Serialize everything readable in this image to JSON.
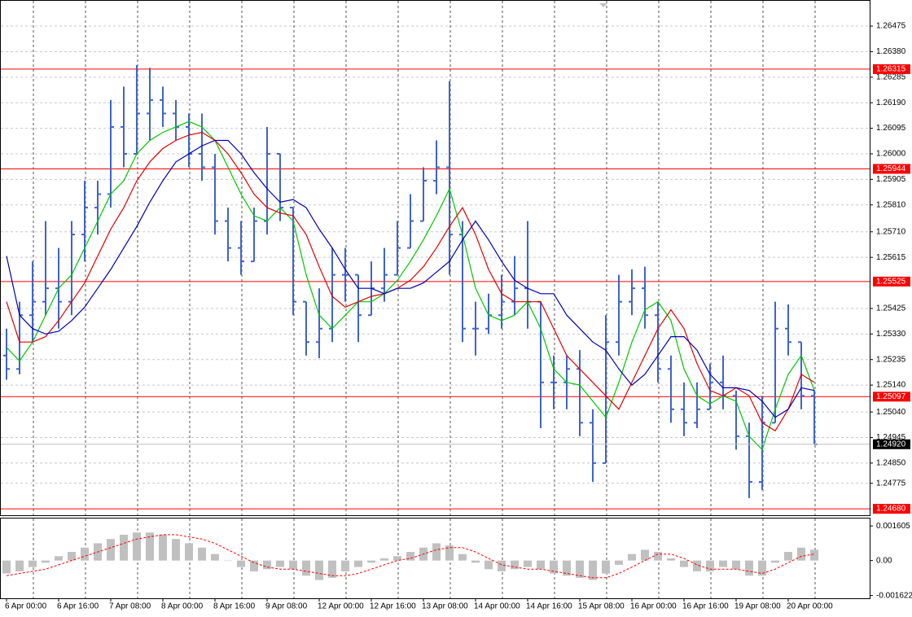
{
  "chart_data": [
    {
      "type": "ohlc",
      "categories": [
        "6 Apr 00:00",
        null,
        null,
        null,
        "6 Apr 16:00",
        null,
        null,
        null,
        "7 Apr 08:00",
        null,
        null,
        null,
        "8 Apr 00:00",
        null,
        null,
        null,
        "8 Apr 16:00",
        null,
        null,
        null,
        "9 Apr 08:00",
        null,
        null,
        null,
        "12 Apr 00:00",
        null,
        null,
        null,
        "12 Apr 16:00",
        null,
        null,
        null,
        "13 Apr 08:00",
        null,
        null,
        null,
        "14 Apr 00:00",
        null,
        null,
        null,
        "14 Apr 16:00",
        null,
        null,
        null,
        "15 Apr 08:00",
        null,
        null,
        null,
        "16 Apr 00:00",
        null,
        null,
        null,
        "16 Apr 16:00",
        null,
        null,
        null,
        "19 Apr 08:00",
        null,
        null,
        null,
        "20 Apr 00:00",
        null,
        null
      ],
      "open": [
        1.2525,
        1.252,
        1.254,
        1.2545,
        1.255,
        1.2545,
        1.257,
        1.258,
        1.2585,
        1.261,
        1.26,
        1.2615,
        1.262,
        1.2615,
        1.261,
        1.26,
        1.2595,
        1.2575,
        1.2565,
        1.256,
        1.2575,
        1.26,
        1.258,
        1.2545,
        1.253,
        1.2535,
        1.2555,
        1.2555,
        1.254,
        1.255,
        1.2555,
        1.2565,
        1.2575,
        1.259,
        1.2595,
        1.257,
        1.2535,
        1.2535,
        1.254,
        1.2545,
        1.255,
        1.2545,
        1.2515,
        1.2515,
        1.252,
        1.25,
        1.2485,
        1.253,
        1.2545,
        1.255,
        1.254,
        1.252,
        1.2505,
        1.25,
        1.2505,
        1.2515,
        1.251,
        1.2495,
        1.2478,
        1.25,
        1.2535,
        1.253,
        1.251
      ],
      "high": [
        1.2535,
        1.2545,
        1.256,
        1.2575,
        1.2565,
        1.2575,
        1.259,
        1.259,
        1.262,
        1.2625,
        1.2633,
        1.2632,
        1.2625,
        1.262,
        1.2615,
        1.2615,
        1.26,
        1.258,
        1.2575,
        1.258,
        1.261,
        1.26,
        1.258,
        1.2545,
        1.255,
        1.2565,
        1.2565,
        1.2555,
        1.256,
        1.2565,
        1.2575,
        1.2585,
        1.2595,
        1.2605,
        1.2627,
        1.2575,
        1.2545,
        1.2548,
        1.2555,
        1.2562,
        1.2575,
        1.2545,
        1.2525,
        1.2525,
        1.2527,
        1.2505,
        1.254,
        1.2555,
        1.2557,
        1.2558,
        1.2545,
        1.2525,
        1.2515,
        1.2515,
        1.2522,
        1.2525,
        1.2512,
        1.25,
        1.251,
        1.2545,
        1.2544,
        1.253,
        1.2512
      ],
      "low": [
        1.2516,
        1.2518,
        1.253,
        1.254,
        1.2535,
        1.254,
        1.256,
        1.257,
        1.258,
        1.2595,
        1.26,
        1.2605,
        1.261,
        1.2605,
        1.2595,
        1.259,
        1.257,
        1.256,
        1.2555,
        1.256,
        1.257,
        1.2575,
        1.254,
        1.2525,
        1.2524,
        1.253,
        1.2545,
        1.253,
        1.254,
        1.2545,
        1.2555,
        1.2565,
        1.2575,
        1.2585,
        1.2555,
        1.253,
        1.2525,
        1.2533,
        1.2535,
        1.254,
        1.2535,
        1.2498,
        1.2505,
        1.2505,
        1.2495,
        1.2478,
        1.2485,
        1.2525,
        1.254,
        1.2535,
        1.2515,
        1.25,
        1.2495,
        1.2498,
        1.2505,
        1.2505,
        1.249,
        1.2472,
        1.2475,
        1.25,
        1.2525,
        1.2505,
        1.2492
      ],
      "close": [
        1.252,
        1.254,
        1.2545,
        1.255,
        1.2545,
        1.257,
        1.258,
        1.2585,
        1.261,
        1.26,
        1.2615,
        1.262,
        1.2615,
        1.261,
        1.26,
        1.2595,
        1.2575,
        1.2565,
        1.256,
        1.2575,
        1.26,
        1.258,
        1.2545,
        1.253,
        1.2535,
        1.2555,
        1.2555,
        1.254,
        1.255,
        1.2555,
        1.2565,
        1.2575,
        1.259,
        1.2595,
        1.257,
        1.2535,
        1.2535,
        1.254,
        1.2545,
        1.255,
        1.2545,
        1.2515,
        1.2515,
        1.252,
        1.25,
        1.2485,
        1.253,
        1.2545,
        1.255,
        1.254,
        1.252,
        1.2505,
        1.25,
        1.2505,
        1.2515,
        1.251,
        1.2495,
        1.2478,
        1.25,
        1.2535,
        1.253,
        1.251,
        1.2492
      ],
      "color": "#3f63d0",
      "series": [
        {
          "color": "#00c800",
          "values": [
            1.2528,
            1.2523,
            1.253,
            1.254,
            1.255,
            1.2555,
            1.2565,
            1.2575,
            1.2585,
            1.259,
            1.26,
            1.2605,
            1.2608,
            1.261,
            1.2612,
            1.261,
            1.2605,
            1.2595,
            1.2585,
            1.2577,
            1.2575,
            1.258,
            1.2575,
            1.2555,
            1.254,
            1.2535,
            1.254,
            1.2545,
            1.2545,
            1.2548,
            1.2553,
            1.256,
            1.2568,
            1.2577,
            1.2587,
            1.257,
            1.255,
            1.254,
            1.2538,
            1.254,
            1.2545,
            1.2535,
            1.252,
            1.2515,
            1.2514,
            1.2508,
            1.2502,
            1.2515,
            1.253,
            1.2542,
            1.2545,
            1.2538,
            1.252,
            1.251,
            1.2507,
            1.251,
            1.2508,
            1.2495,
            1.249,
            1.2505,
            1.2518,
            1.2525,
            1.2512
          ]
        },
        {
          "color": "#e00000",
          "values": [
            1.2545,
            1.253,
            1.253,
            1.2532,
            1.2538,
            1.2545,
            1.2552,
            1.2562,
            1.2572,
            1.258,
            1.259,
            1.2597,
            1.2602,
            1.2605,
            1.2607,
            1.2608,
            1.2605,
            1.26,
            1.2593,
            1.2585,
            1.258,
            1.2578,
            1.2577,
            1.257,
            1.2558,
            1.2547,
            1.2543,
            1.2545,
            1.2547,
            1.2548,
            1.255,
            1.2553,
            1.2558,
            1.2565,
            1.2573,
            1.258,
            1.257,
            1.2557,
            1.2548,
            1.2545,
            1.2545,
            1.2545,
            1.2535,
            1.2525,
            1.252,
            1.2515,
            1.251,
            1.2505,
            1.2515,
            1.2525,
            1.2535,
            1.2542,
            1.2535,
            1.2522,
            1.2512,
            1.251,
            1.2513,
            1.251,
            1.25,
            1.2497,
            1.2505,
            1.2518,
            1.2515
          ]
        },
        {
          "color": "#0000b4",
          "values": [
            1.2562,
            1.254,
            1.2535,
            1.2533,
            1.2534,
            1.2538,
            1.2543,
            1.255,
            1.2557,
            1.2565,
            1.2573,
            1.2582,
            1.259,
            1.2597,
            1.26,
            1.2603,
            1.2605,
            1.2605,
            1.26,
            1.2593,
            1.2587,
            1.2582,
            1.2583,
            1.258,
            1.2572,
            1.2565,
            1.2557,
            1.255,
            1.255,
            1.2548,
            1.255,
            1.255,
            1.2552,
            1.2556,
            1.256,
            1.2568,
            1.2575,
            1.2568,
            1.256,
            1.2553,
            1.255,
            1.2548,
            1.2548,
            1.254,
            1.2535,
            1.253,
            1.2527,
            1.252,
            1.2514,
            1.2518,
            1.2525,
            1.2532,
            1.2532,
            1.2527,
            1.2518,
            1.2513,
            1.2513,
            1.2512,
            1.2508,
            1.2502,
            1.2505,
            1.2513,
            1.2512
          ]
        }
      ],
      "ylim": [
        1.24656,
        1.26569
      ],
      "yticks": [
        1.26475,
        {
          "value": 1.2638,
          "label": "1.26380"
        },
        1.26285,
        {
          "value": 1.2619,
          "label": "1.26190"
        },
        1.26095,
        {
          "value": 1.26,
          "label": "1.26000"
        },
        1.25905,
        {
          "value": 1.2581,
          "label": "1.25810"
        },
        {
          "value": 1.2571,
          "label": "1.25710"
        },
        1.25615,
        1.25425,
        {
          "value": 1.2533,
          "label": "1.25330"
        },
        1.25235,
        {
          "value": 1.2514,
          "label": "1.25140"
        },
        {
          "value": 1.2504,
          "label": "1.25040"
        },
        1.24945,
        {
          "value": 1.2485,
          "label": "1.24850"
        },
        1.24775
      ],
      "grid": true,
      "levels": [
        1.26315,
        1.25944,
        1.25525,
        1.25097,
        {
          "value": 1.2468,
          "label": "1.24680"
        }
      ],
      "level_color": "#ff0000",
      "current": {
        "value": 1.2492,
        "label": "1.24920"
      }
    },
    {
      "type": "bar",
      "values": [
        -0.0006,
        -0.0005,
        -0.0003,
        -0.0001,
        0.0002,
        0.0004,
        0.0006,
        0.0008,
        0.001,
        0.0012,
        0.0013,
        0.0013,
        0.0012,
        0.001,
        0.0008,
        0.0006,
        0.0003,
        0,
        -0.0003,
        -0.0005,
        -0.0004,
        -0.0003,
        -0.0004,
        -0.0007,
        -0.0009,
        -0.0008,
        -0.0005,
        -0.0003,
        -0.0001,
        0.0001,
        0.0002,
        0.0004,
        0.0006,
        0.0008,
        0.0007,
        0.0003,
        -0.0001,
        -0.0004,
        -0.0005,
        -0.0004,
        -0.0003,
        -0.0004,
        -0.0006,
        -0.0007,
        -0.0008,
        -0.0009,
        -0.0006,
        -0.0002,
        0.0003,
        0.0005,
        0.0004,
        0.0001,
        -0.0003,
        -0.0005,
        -0.0005,
        -0.0003,
        -0.0004,
        -0.0007,
        -0.0007,
        -0.0001,
        0.0004,
        0.0006,
        0.0005
      ],
      "color": "#c0c0c0",
      "signal": {
        "color": "#ff0000",
        "values": [
          -0.0007,
          -0.0006,
          -0.0005,
          -0.0004,
          -0.0002,
          0,
          0.0002,
          0.0004,
          0.0006,
          0.0008,
          0.001,
          0.0011,
          0.0012,
          0.0012,
          0.0011,
          0.001,
          0.0008,
          0.0005,
          0.0002,
          -0.0001,
          -0.0003,
          -0.0004,
          -0.0004,
          -0.0005,
          -0.0006,
          -0.0007,
          -0.0007,
          -0.0006,
          -0.0004,
          -0.0002,
          0,
          0.0001,
          0.0003,
          0.0005,
          0.0006,
          0.0006,
          0.0004,
          0.0001,
          -0.0002,
          -0.0003,
          -0.0004,
          -0.0004,
          -0.0005,
          -0.0006,
          -0.0007,
          -0.0008,
          -0.0008,
          -0.0006,
          -0.0003,
          0,
          0.0003,
          0.0003,
          0.0001,
          -0.0002,
          -0.0004,
          -0.0004,
          -0.0004,
          -0.0005,
          -0.0006,
          -0.0004,
          -0.0001,
          0.0002,
          0.0003
        ]
      },
      "ylim": [
        -0.00175,
        0.00195
      ],
      "yticks": [
        0.001605,
        {
          "value": 0,
          "label": "0.00"
        },
        -0.001622
      ]
    }
  ]
}
